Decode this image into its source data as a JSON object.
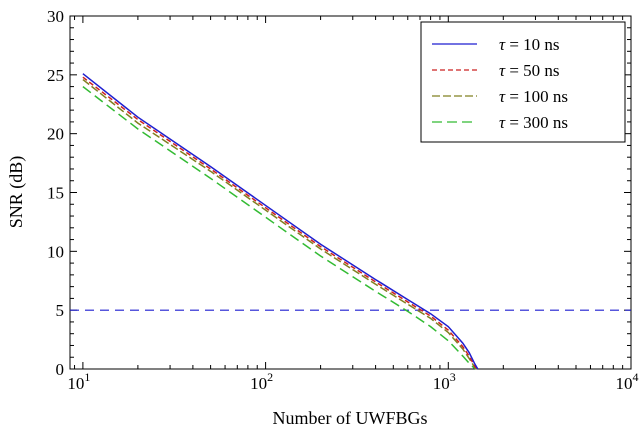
{
  "chart_data": {
    "type": "line",
    "xlabel": "Number of UWFBGs",
    "ylabel": "SNR (dB)",
    "xscale": "log",
    "xlim": [
      8.5,
      10000
    ],
    "ylim": [
      0,
      30
    ],
    "x_ticks": [
      {
        "value": 10,
        "base": "10",
        "exp": "1"
      },
      {
        "value": 100,
        "base": "10",
        "exp": "2"
      },
      {
        "value": 1000,
        "base": "10",
        "exp": "3"
      },
      {
        "value": 10000,
        "base": "10",
        "exp": "4"
      }
    ],
    "y_ticks": [
      0,
      5,
      10,
      15,
      20,
      25,
      30
    ],
    "legend_position": "top-right",
    "series": [
      {
        "name": "τ = 10 ns",
        "symbol": "τ",
        "label_rest": " = 10 ns",
        "color": "#1f1fd0",
        "dash": "",
        "x": [
          10,
          20,
          50,
          100,
          200,
          400,
          600,
          800,
          1000,
          1200,
          1300,
          1400,
          1450
        ],
        "y": [
          25.1,
          21.4,
          17.2,
          13.9,
          10.6,
          7.6,
          5.9,
          4.7,
          3.6,
          2.2,
          1.4,
          0.4,
          0
        ]
      },
      {
        "name": "τ = 50 ns",
        "symbol": "τ",
        "label_rest": " = 50 ns",
        "color": "#cc2222",
        "dash": "5,3",
        "x": [
          10,
          20,
          50,
          100,
          200,
          400,
          600,
          800,
          1000,
          1200,
          1300,
          1400,
          1445
        ],
        "y": [
          24.8,
          21.2,
          17.0,
          13.7,
          10.4,
          7.4,
          5.7,
          4.5,
          3.3,
          1.9,
          1.1,
          0.2,
          0
        ]
      },
      {
        "name": "τ = 100 ns",
        "symbol": "τ",
        "label_rest": " = 100 ns",
        "color": "#808020",
        "dash": "8,3",
        "x": [
          10,
          20,
          50,
          100,
          200,
          400,
          600,
          800,
          1000,
          1200,
          1300,
          1400,
          1440
        ],
        "y": [
          24.6,
          20.9,
          16.8,
          13.5,
          10.2,
          7.2,
          5.5,
          4.3,
          3.1,
          1.7,
          0.9,
          0.1,
          0
        ]
      },
      {
        "name": "τ = 300 ns",
        "symbol": "τ",
        "label_rest": " = 300 ns",
        "color": "#33bb33",
        "dash": "10,5",
        "x": [
          10,
          20,
          50,
          100,
          200,
          400,
          600,
          800,
          1000,
          1200,
          1300,
          1380,
          1420
        ],
        "y": [
          24.0,
          20.4,
          16.2,
          12.9,
          9.6,
          6.6,
          4.9,
          3.6,
          2.4,
          1.1,
          0.5,
          0.1,
          0
        ]
      }
    ],
    "reference_lines": [
      {
        "y": 5,
        "color": "#1f1fd0",
        "dash": "9,6"
      }
    ]
  }
}
